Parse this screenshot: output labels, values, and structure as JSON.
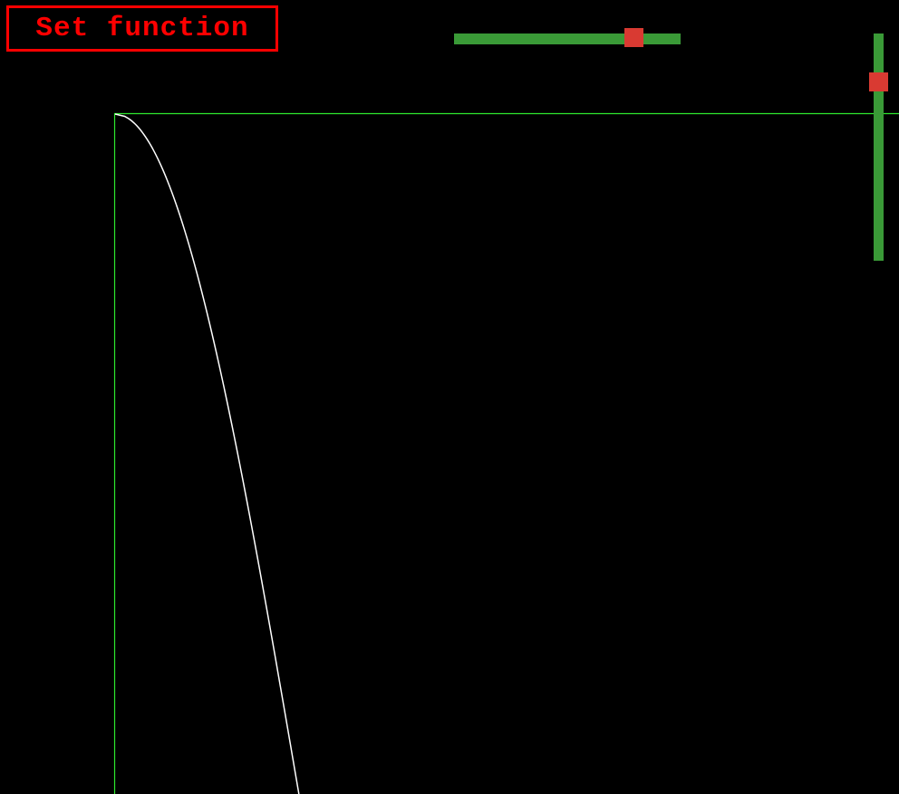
{
  "app": {
    "set_function_label": "Set function"
  },
  "controls": {
    "horizontal_slider": {
      "value_fraction": 0.79
    },
    "vertical_slider": {
      "value_fraction": 0.79
    }
  },
  "colors": {
    "background": "#000000",
    "button_accent": "#ff0000",
    "slider_track": "#3a9a37",
    "slider_handle": "#d93a32",
    "axes": "#2ee82e",
    "curve": "#ffffff"
  },
  "plot": {
    "curve_shape": "cosine-like falloff"
  }
}
